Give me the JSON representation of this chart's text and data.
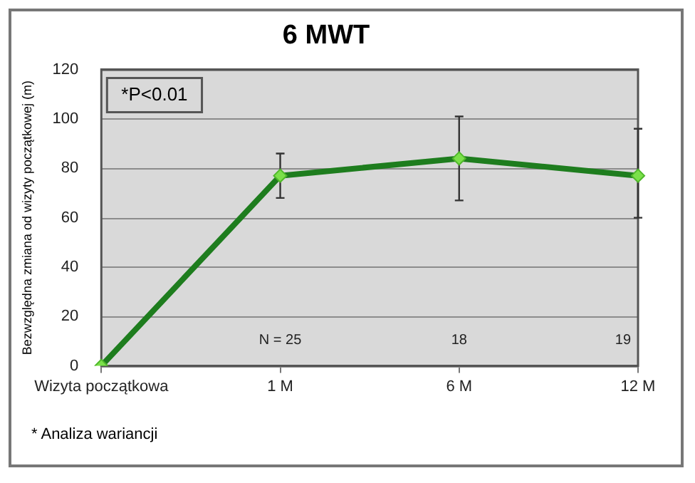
{
  "chart_data": {
    "type": "line",
    "title": "6 MWT",
    "ylabel": "Bezwzględna zmiana od wizyty początkowej (m)",
    "categories": [
      "Wizyta początkowa",
      "1 M",
      "6 M",
      "12 M"
    ],
    "series": [
      {
        "color": "#1e7d1e",
        "values": [
          0,
          77,
          84,
          77
        ],
        "errors": [
          null,
          [
            68,
            86
          ],
          [
            67,
            101
          ],
          [
            60,
            96
          ]
        ]
      }
    ],
    "ylim": [
      0,
      120
    ],
    "yticks": [
      0,
      20,
      40,
      60,
      80,
      100,
      120
    ],
    "grid": "y",
    "legend": false,
    "marker": "diamond",
    "line_style": "solid",
    "annotations": [
      "*P<0.01",
      "* Analiza wariancji",
      "N = 25",
      "18",
      "19"
    ]
  }
}
